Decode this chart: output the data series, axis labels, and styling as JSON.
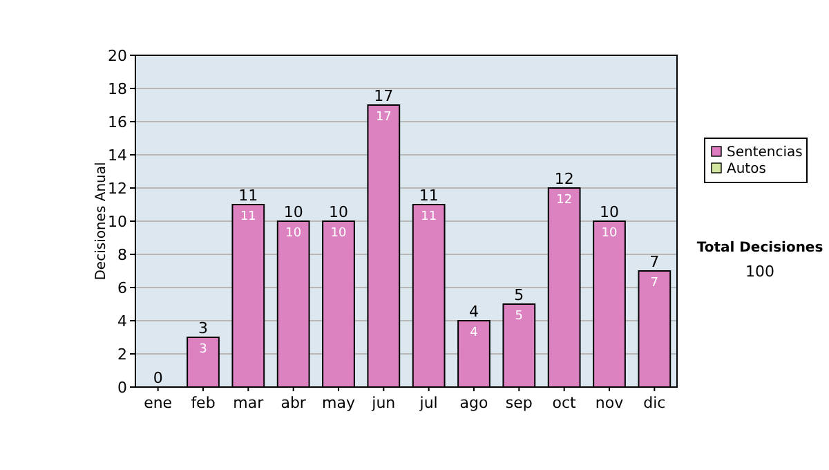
{
  "chart_data": {
    "type": "bar",
    "ylabel": "Decisiones Anual",
    "categories": [
      "ene",
      "feb",
      "mar",
      "abr",
      "may",
      "jun",
      "jul",
      "ago",
      "sep",
      "oct",
      "nov",
      "dic"
    ],
    "series": [
      {
        "name": "Sentencias",
        "color": "#dc7cbe",
        "values": [
          0,
          3,
          11,
          10,
          10,
          17,
          11,
          4,
          5,
          12,
          10,
          7
        ],
        "value_labels": [
          null,
          "3",
          "11",
          "10",
          "10",
          "17",
          "11",
          "4",
          "5",
          "12",
          "10",
          "7"
        ]
      },
      {
        "name": "Autos",
        "color": "#d2e6a0",
        "values": [
          0,
          0,
          0,
          0,
          0,
          0,
          0,
          0,
          0,
          0,
          0,
          0
        ]
      }
    ],
    "stacked": true,
    "totals": [
      "0",
      "3",
      "11",
      "10",
      "10",
      "17",
      "11",
      "4",
      "5",
      "12",
      "10",
      "7"
    ],
    "ylim": [
      0,
      20
    ],
    "yticks": [
      0,
      2,
      4,
      6,
      8,
      10,
      12,
      14,
      16,
      18,
      20
    ],
    "grid": "y",
    "legend": "right",
    "annotations": [
      "Total Decisiones",
      "100"
    ]
  }
}
